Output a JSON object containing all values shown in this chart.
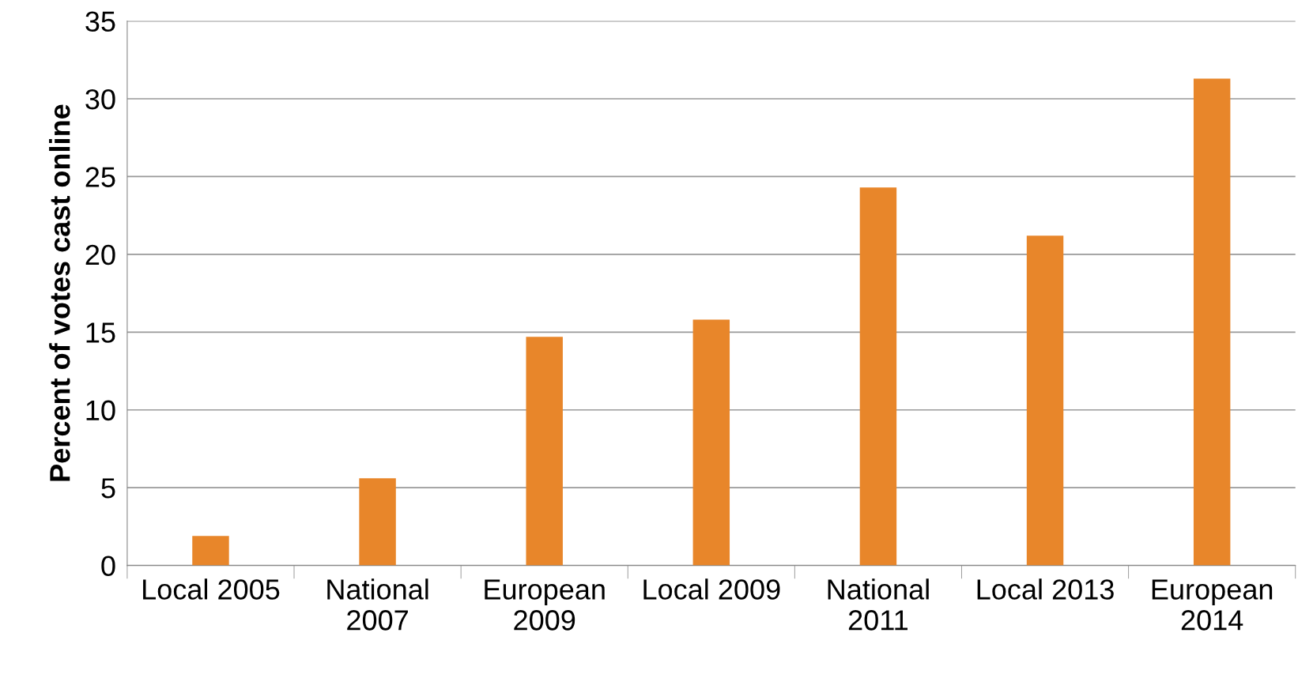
{
  "chart_data": {
    "type": "bar",
    "ylabel": "Percent of votes cast online",
    "categories": [
      "Local 2005",
      "National 2007",
      "European 2009",
      "Local 2009",
      "National 2011",
      "Local 2013",
      "European 2014"
    ],
    "values": [
      1.9,
      5.6,
      14.7,
      15.8,
      24.3,
      21.2,
      31.3
    ],
    "color": "#e8862a",
    "ylim": [
      0,
      35
    ],
    "yticks": [
      0,
      5,
      10,
      15,
      20,
      25,
      30,
      35
    ],
    "grid": "y",
    "legend": false
  }
}
